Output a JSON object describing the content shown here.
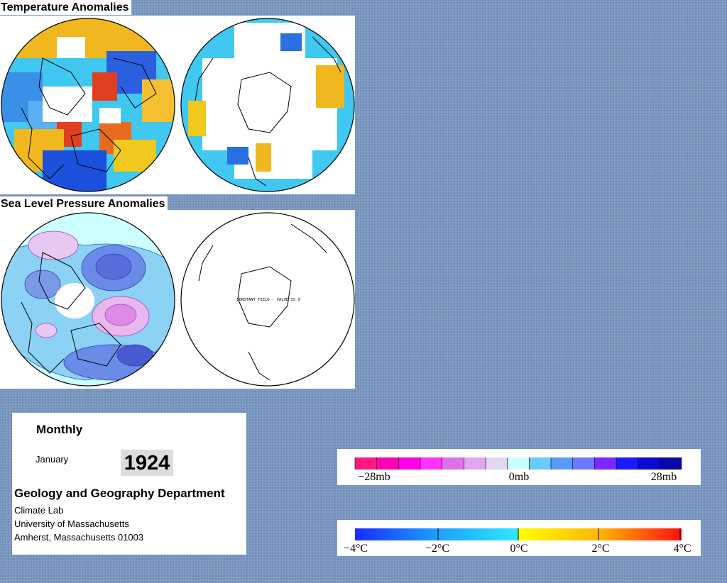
{
  "temperature_title": "Temperature Anomalies",
  "slp_title": "Sea Level Pressure Anomalies",
  "constant_field_text": "CONSTANT FIELD - VALUE IS 0",
  "period": "Monthly",
  "month": "January",
  "year": "1924",
  "department": "Geology and Geography Department",
  "lab": "Climate Lab",
  "university": "University of Massachusetts",
  "address": "Amherst, Massachusetts 01003",
  "slp_legend": {
    "labels": [
      "−28mb",
      "0mb",
      "28mb"
    ],
    "colors": [
      "#ff1a80",
      "#ff00b4",
      "#ff00e6",
      "#ff32ff",
      "#e070e8",
      "#e2a6ee",
      "#e0d6f6",
      "#ccffff",
      "#66ccff",
      "#5a9aff",
      "#6a78ff",
      "#7a28ff",
      "#1a1aff",
      "#0c0cd2",
      "#0808a8"
    ]
  },
  "temp_legend": {
    "labels": [
      "−4°C",
      "−2°C",
      "0°C",
      "2°C",
      "4°C"
    ],
    "colors": [
      "#1a2aff",
      "#1aa0ff",
      "#30e8ff",
      "#ffff00",
      "#ffb400",
      "#ff5a00",
      "#ff1010"
    ]
  },
  "colors": {
    "background": "#7a98c0",
    "warm": "#f5b40a",
    "hot": "#e8461e",
    "cool": "#3c9ce8",
    "cold": "#1a50dc",
    "neutral": "#40d0f0",
    "low": "#7070dc",
    "high": "#dc8ce6"
  }
}
